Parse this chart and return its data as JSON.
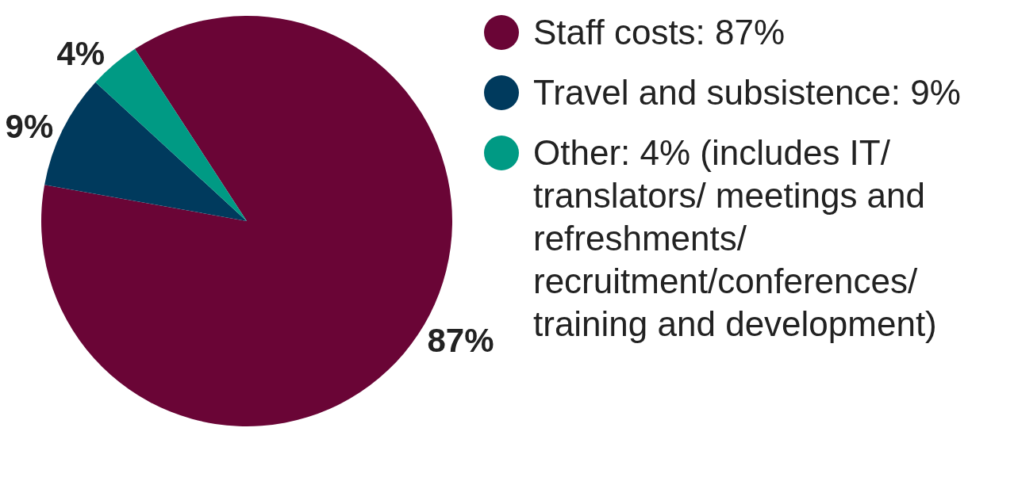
{
  "chart_data": {
    "type": "pie",
    "categories": [
      "Staff costs: 87%",
      "Travel and subsistence: 9%",
      "Other: 4% (includes IT/ translators/ meetings and refreshments/ recruitment/conferences/ training and development)"
    ],
    "values": [
      87,
      9,
      4
    ],
    "colors": [
      "#6a0536",
      "#003a5d",
      "#009a84"
    ],
    "value_labels": [
      "87%",
      "9%",
      "4%"
    ],
    "legend": "right"
  }
}
